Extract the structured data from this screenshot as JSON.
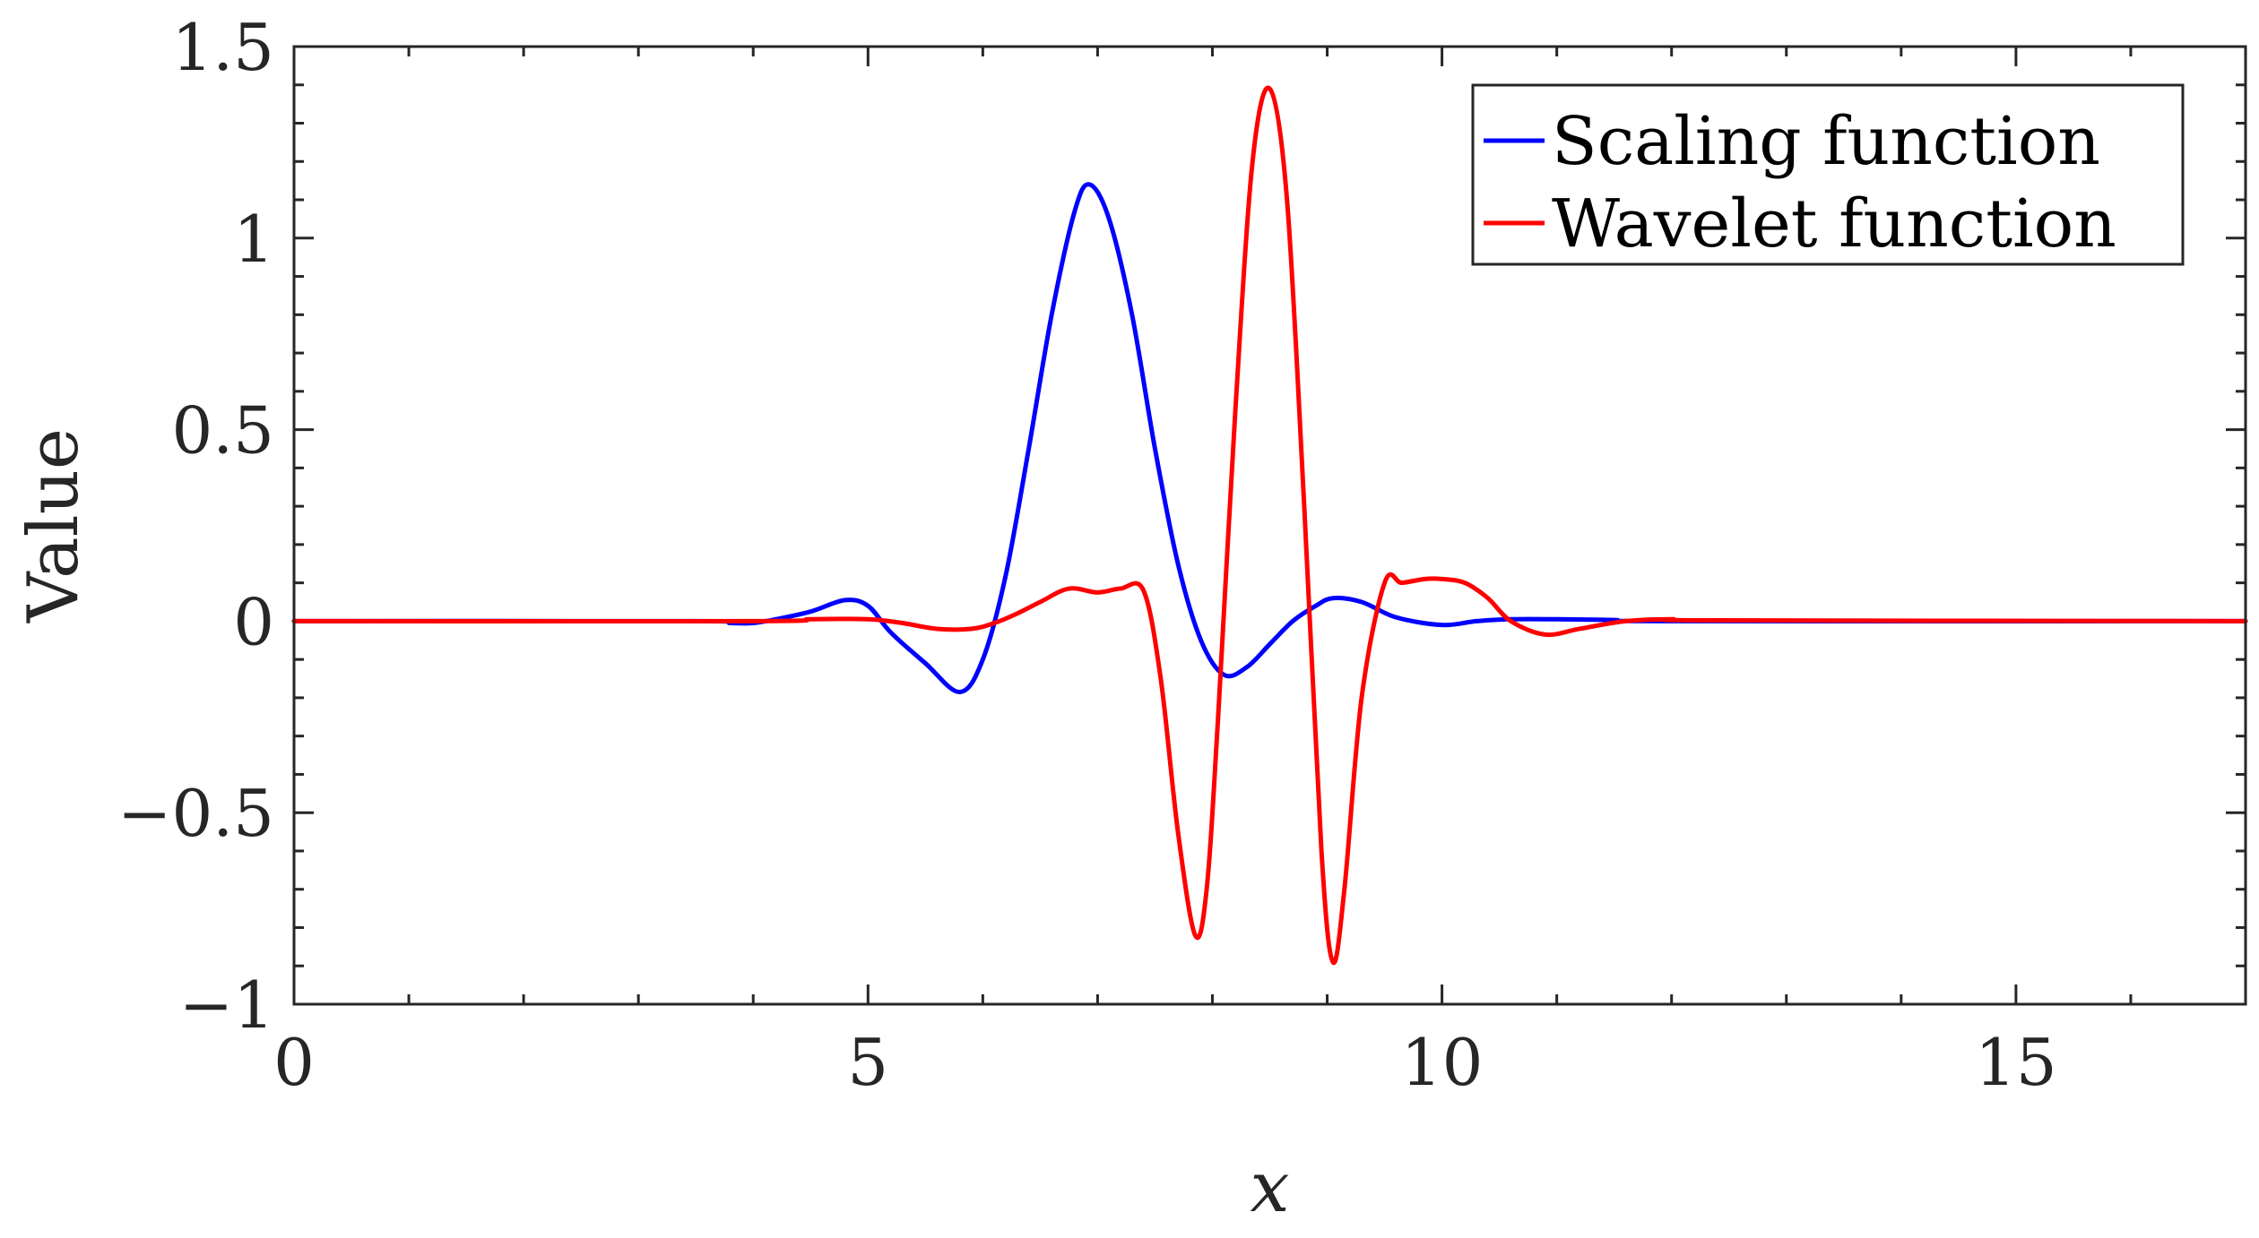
{
  "chart_data": {
    "type": "line",
    "title": "",
    "xlabel": "x",
    "ylabel": "Value",
    "xlim": [
      0,
      17
    ],
    "ylim": [
      -1,
      1.5
    ],
    "xticks": [
      0,
      5,
      10,
      15
    ],
    "xtick_labels": [
      "0",
      "5",
      "10",
      "15"
    ],
    "yticks": [
      -1,
      -0.5,
      0,
      0.5,
      1,
      1.5
    ],
    "ytick_labels": [
      "−1",
      "−0.5",
      "0",
      "0.5",
      "1",
      "1.5"
    ],
    "grid": false,
    "legend_position": "top-right",
    "series": [
      {
        "name": "Scaling function",
        "color": "#0000FF",
        "x": [
          0,
          3.5,
          3.8,
          4.0,
          4.2,
          4.5,
          4.8,
          5.0,
          5.2,
          5.5,
          5.8,
          6.0,
          6.2,
          6.4,
          6.6,
          6.8,
          6.93,
          7.1,
          7.3,
          7.5,
          7.7,
          7.9,
          8.1,
          8.3,
          8.5,
          8.7,
          8.9,
          9.05,
          9.3,
          9.6,
          10.0,
          10.3,
          10.6,
          11.0,
          11.5,
          12.0,
          17
        ],
        "y": [
          0,
          0,
          -0.005,
          -0.005,
          0.005,
          0.025,
          0.055,
          0.04,
          -0.03,
          -0.11,
          -0.185,
          -0.1,
          0.12,
          0.45,
          0.8,
          1.07,
          1.14,
          1.05,
          0.8,
          0.45,
          0.15,
          -0.05,
          -0.14,
          -0.12,
          -0.06,
          0.0,
          0.04,
          0.06,
          0.05,
          0.01,
          -0.01,
          0.0,
          0.005,
          0.005,
          0.003,
          0,
          0
        ]
      },
      {
        "name": "Wavelet function",
        "color": "#FF0000",
        "x": [
          0,
          4.0,
          4.5,
          5.0,
          5.3,
          5.6,
          5.9,
          6.1,
          6.3,
          6.5,
          6.75,
          7.0,
          7.2,
          7.4,
          7.55,
          7.7,
          7.85,
          7.95,
          8.05,
          8.2,
          8.35,
          8.5,
          8.65,
          8.8,
          8.95,
          9.05,
          9.15,
          9.3,
          9.5,
          9.65,
          9.85,
          10.0,
          10.2,
          10.4,
          10.6,
          10.9,
          11.2,
          11.6,
          12.0,
          12.4,
          17
        ],
        "y": [
          0,
          0,
          0.005,
          0.005,
          -0.005,
          -0.02,
          -0.02,
          -0.005,
          0.02,
          0.05,
          0.085,
          0.075,
          0.085,
          0.08,
          -0.15,
          -0.55,
          -0.82,
          -0.7,
          -0.25,
          0.55,
          1.2,
          1.39,
          1.1,
          0.3,
          -0.6,
          -0.89,
          -0.7,
          -0.2,
          0.1,
          0.1,
          0.11,
          0.11,
          0.1,
          0.06,
          0.0,
          -0.035,
          -0.02,
          0.0,
          0.005,
          0.002,
          0
        ]
      }
    ]
  }
}
